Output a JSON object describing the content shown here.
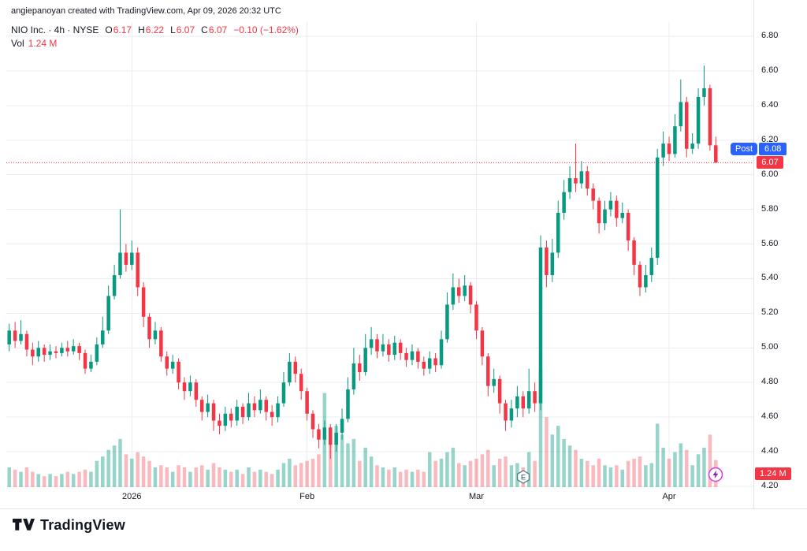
{
  "header": {
    "attribution": "angiepanoyan created with TradingView.com, Apr 09, 2026 20:32 UTC"
  },
  "legend": {
    "title": "NIO Inc. · 4h · NYSE",
    "ohlc": [
      {
        "label": "O",
        "value": "6.17"
      },
      {
        "label": "H",
        "value": "6.22"
      },
      {
        "label": "L",
        "value": "6.07"
      },
      {
        "label": "C",
        "value": "6.07"
      }
    ],
    "change": "−0.10 (−1.62%)",
    "vol_label": "Vol",
    "vol_value": "1.24 M"
  },
  "price_axis": {
    "post_label": "Post",
    "post_value": "6.08",
    "last_value": "6.07",
    "volume_value": "1.24 M"
  },
  "markers": {
    "earnings": {
      "label": "E",
      "index": 88
    },
    "flash": {
      "index": 121
    }
  },
  "footer": {
    "brand": "TradingView"
  },
  "colors": {
    "up": "#089981",
    "down": "#f23645",
    "post": "#2962ff",
    "grid": "#ebedf2",
    "axis_line": "#e0e3eb",
    "text": "#131722"
  },
  "chart_data": {
    "type": "candlestick",
    "title": "NIO Inc.",
    "interval": "4h",
    "exchange": "NYSE",
    "ylim": [
      4.2,
      6.8
    ],
    "y_ticks": [
      6.8,
      6.6,
      6.4,
      6.2,
      6.0,
      5.8,
      5.6,
      5.4,
      5.2,
      5.0,
      4.8,
      4.6,
      4.4,
      4.2
    ],
    "x_labels": [
      {
        "text": "2026",
        "index": 21
      },
      {
        "text": "Feb",
        "index": 51
      },
      {
        "text": "Mar",
        "index": 80
      },
      {
        "text": "Apr",
        "index": 113
      }
    ],
    "last_price": 6.07,
    "post_price": 6.08,
    "last_ohlc": {
      "o": 6.17,
      "h": 6.22,
      "l": 6.07,
      "c": 6.07
    },
    "change": -0.1,
    "change_pct": -1.62,
    "last_volume_m": 1.24,
    "volume_unit": "M",
    "candles": [
      [
        5.02,
        5.14,
        4.98,
        5.1,
        0.9
      ],
      [
        5.1,
        5.15,
        5.0,
        5.04,
        0.8
      ],
      [
        5.04,
        5.16,
        5.02,
        5.08,
        0.7
      ],
      [
        5.08,
        5.1,
        4.95,
        4.99,
        0.9
      ],
      [
        4.99,
        5.03,
        4.9,
        4.95,
        0.7
      ],
      [
        4.95,
        5.04,
        4.92,
        5.0,
        0.6
      ],
      [
        5.0,
        5.02,
        4.92,
        4.96,
        0.5
      ],
      [
        4.96,
        5.02,
        4.93,
        4.98,
        0.6
      ],
      [
        4.98,
        5.01,
        4.94,
        4.97,
        0.5
      ],
      [
        4.97,
        5.03,
        4.95,
        5.0,
        0.6
      ],
      [
        5.0,
        5.04,
        4.95,
        4.98,
        0.7
      ],
      [
        4.98,
        5.05,
        4.96,
        5.01,
        0.6
      ],
      [
        5.01,
        5.03,
        4.93,
        4.97,
        0.7
      ],
      [
        4.97,
        4.99,
        4.85,
        4.88,
        0.8
      ],
      [
        4.88,
        4.96,
        4.86,
        4.92,
        0.7
      ],
      [
        4.92,
        5.06,
        4.9,
        5.02,
        1.2
      ],
      [
        5.02,
        5.18,
        5.0,
        5.1,
        1.4
      ],
      [
        5.1,
        5.36,
        5.08,
        5.3,
        1.7
      ],
      [
        5.3,
        5.48,
        5.28,
        5.42,
        1.9
      ],
      [
        5.42,
        5.8,
        5.4,
        5.55,
        2.2
      ],
      [
        5.55,
        5.6,
        5.44,
        5.48,
        1.5
      ],
      [
        5.48,
        5.62,
        5.45,
        5.55,
        1.3
      ],
      [
        5.55,
        5.58,
        5.3,
        5.35,
        1.6
      ],
      [
        5.35,
        5.38,
        5.12,
        5.18,
        1.4
      ],
      [
        5.18,
        5.2,
        5.0,
        5.05,
        1.2
      ],
      [
        5.05,
        5.15,
        5.02,
        5.1,
        0.9
      ],
      [
        5.1,
        5.12,
        4.92,
        4.95,
        1.0
      ],
      [
        4.95,
        4.98,
        4.84,
        4.88,
        0.9
      ],
      [
        4.88,
        4.96,
        4.85,
        4.92,
        0.7
      ],
      [
        4.92,
        4.94,
        4.76,
        4.8,
        1.0
      ],
      [
        4.8,
        4.83,
        4.7,
        4.75,
        0.9
      ],
      [
        4.75,
        4.84,
        4.72,
        4.8,
        0.7
      ],
      [
        4.8,
        4.82,
        4.66,
        4.7,
        0.9
      ],
      [
        4.7,
        4.72,
        4.58,
        4.63,
        1.0
      ],
      [
        4.63,
        4.73,
        4.6,
        4.68,
        0.8
      ],
      [
        4.68,
        4.7,
        4.52,
        4.58,
        1.1
      ],
      [
        4.58,
        4.62,
        4.5,
        4.55,
        0.9
      ],
      [
        4.55,
        4.66,
        4.52,
        4.62,
        0.8
      ],
      [
        4.62,
        4.65,
        4.54,
        4.58,
        0.7
      ],
      [
        4.58,
        4.7,
        4.55,
        4.66,
        0.8
      ],
      [
        4.66,
        4.68,
        4.56,
        4.6,
        0.6
      ],
      [
        4.6,
        4.74,
        4.58,
        4.68,
        0.9
      ],
      [
        4.68,
        4.72,
        4.6,
        4.64,
        0.7
      ],
      [
        4.64,
        4.76,
        4.62,
        4.7,
        0.8
      ],
      [
        4.7,
        4.72,
        4.58,
        4.63,
        0.7
      ],
      [
        4.63,
        4.67,
        4.55,
        4.6,
        0.6
      ],
      [
        4.6,
        4.72,
        4.57,
        4.68,
        0.8
      ],
      [
        4.68,
        4.86,
        4.66,
        4.8,
        1.1
      ],
      [
        4.8,
        4.97,
        4.78,
        4.92,
        1.3
      ],
      [
        4.92,
        4.95,
        4.8,
        4.85,
        1.0
      ],
      [
        4.85,
        4.88,
        4.7,
        4.75,
        1.1
      ],
      [
        4.75,
        4.77,
        4.58,
        4.62,
        1.2
      ],
      [
        4.62,
        4.64,
        4.48,
        4.53,
        1.3
      ],
      [
        4.53,
        4.56,
        4.42,
        4.47,
        1.5
      ],
      [
        4.47,
        4.58,
        4.44,
        4.54,
        4.3
      ],
      [
        4.54,
        4.56,
        4.36,
        4.44,
        2.0
      ],
      [
        4.44,
        4.56,
        4.4,
        4.51,
        2.8
      ],
      [
        4.51,
        4.65,
        4.47,
        4.59,
        2.4
      ],
      [
        4.59,
        4.83,
        4.57,
        4.76,
        2.0
      ],
      [
        4.76,
        5.0,
        4.73,
        4.91,
        2.2
      ],
      [
        4.91,
        4.96,
        4.81,
        4.86,
        1.2
      ],
      [
        4.86,
        5.08,
        4.84,
        5.0,
        1.8
      ],
      [
        5.0,
        5.12,
        4.96,
        5.05,
        1.4
      ],
      [
        5.05,
        5.08,
        4.94,
        4.98,
        1.0
      ],
      [
        4.98,
        5.08,
        4.95,
        5.02,
        0.9
      ],
      [
        5.02,
        5.05,
        4.92,
        4.96,
        0.8
      ],
      [
        4.96,
        5.07,
        4.93,
        5.03,
        0.9
      ],
      [
        5.03,
        5.05,
        4.93,
        4.97,
        0.7
      ],
      [
        4.97,
        5.0,
        4.89,
        4.93,
        0.8
      ],
      [
        4.93,
        5.02,
        4.9,
        4.98,
        0.7
      ],
      [
        4.98,
        5.0,
        4.88,
        4.92,
        0.8
      ],
      [
        4.92,
        4.95,
        4.84,
        4.88,
        0.7
      ],
      [
        4.88,
        4.98,
        4.85,
        4.94,
        1.6
      ],
      [
        4.94,
        4.97,
        4.86,
        4.9,
        1.2
      ],
      [
        4.9,
        5.1,
        4.88,
        5.05,
        1.3
      ],
      [
        5.05,
        5.32,
        5.03,
        5.25,
        1.6
      ],
      [
        5.25,
        5.43,
        5.22,
        5.35,
        1.8
      ],
      [
        5.35,
        5.4,
        5.26,
        5.3,
        1.1
      ],
      [
        5.3,
        5.42,
        5.27,
        5.36,
        1.0
      ],
      [
        5.36,
        5.38,
        5.2,
        5.25,
        1.2
      ],
      [
        5.25,
        5.27,
        5.05,
        5.1,
        1.3
      ],
      [
        5.1,
        5.12,
        4.9,
        4.95,
        1.5
      ],
      [
        4.95,
        4.97,
        4.72,
        4.78,
        1.7
      ],
      [
        4.78,
        4.88,
        4.74,
        4.82,
        1.0
      ],
      [
        4.82,
        4.84,
        4.62,
        4.68,
        1.3
      ],
      [
        4.68,
        4.7,
        4.52,
        4.58,
        1.4
      ],
      [
        4.58,
        4.7,
        4.54,
        4.65,
        1.0
      ],
      [
        4.65,
        4.78,
        4.6,
        4.72,
        1.1
      ],
      [
        4.72,
        4.75,
        4.6,
        4.65,
        0.9
      ],
      [
        4.65,
        4.88,
        4.62,
        4.75,
        1.6
      ],
      [
        4.75,
        4.8,
        4.63,
        4.68,
        1.2
      ],
      [
        4.68,
        5.65,
        4.64,
        5.58,
        5.4
      ],
      [
        5.58,
        5.62,
        5.35,
        5.42,
        3.2
      ],
      [
        5.42,
        5.63,
        5.38,
        5.55,
        2.4
      ],
      [
        5.55,
        5.85,
        5.52,
        5.78,
        2.8
      ],
      [
        5.78,
        5.97,
        5.74,
        5.9,
        2.2
      ],
      [
        5.9,
        6.05,
        5.86,
        5.98,
        1.9
      ],
      [
        5.98,
        6.18,
        5.9,
        5.95,
        1.7
      ],
      [
        5.95,
        6.08,
        5.92,
        6.02,
        1.3
      ],
      [
        6.02,
        6.05,
        5.88,
        5.92,
        1.2
      ],
      [
        5.92,
        5.95,
        5.8,
        5.85,
        1.0
      ],
      [
        5.85,
        5.87,
        5.66,
        5.72,
        1.3
      ],
      [
        5.72,
        5.85,
        5.68,
        5.8,
        1.0
      ],
      [
        5.8,
        5.9,
        5.76,
        5.85,
        0.9
      ],
      [
        5.85,
        5.88,
        5.7,
        5.75,
        1.0
      ],
      [
        5.75,
        5.84,
        5.72,
        5.78,
        0.8
      ],
      [
        5.78,
        5.8,
        5.56,
        5.62,
        1.2
      ],
      [
        5.62,
        5.64,
        5.42,
        5.48,
        1.3
      ],
      [
        5.48,
        5.5,
        5.3,
        5.35,
        1.4
      ],
      [
        5.35,
        5.48,
        5.32,
        5.42,
        1.0
      ],
      [
        5.42,
        5.58,
        5.38,
        5.52,
        1.1
      ],
      [
        5.52,
        6.15,
        5.48,
        6.1,
        2.9
      ],
      [
        6.1,
        6.25,
        6.05,
        6.18,
        1.8
      ],
      [
        6.18,
        6.22,
        6.08,
        6.12,
        1.3
      ],
      [
        6.12,
        6.35,
        6.1,
        6.28,
        1.6
      ],
      [
        6.28,
        6.55,
        6.25,
        6.42,
        2.0
      ],
      [
        6.42,
        6.45,
        6.1,
        6.15,
        1.7
      ],
      [
        6.15,
        6.24,
        6.12,
        6.18,
        1.0
      ],
      [
        6.18,
        6.5,
        6.15,
        6.45,
        1.5
      ],
      [
        6.45,
        6.63,
        6.4,
        6.5,
        1.8
      ],
      [
        6.5,
        6.52,
        6.14,
        6.17,
        2.4
      ],
      [
        6.17,
        6.22,
        6.07,
        6.07,
        1.24
      ]
    ]
  }
}
